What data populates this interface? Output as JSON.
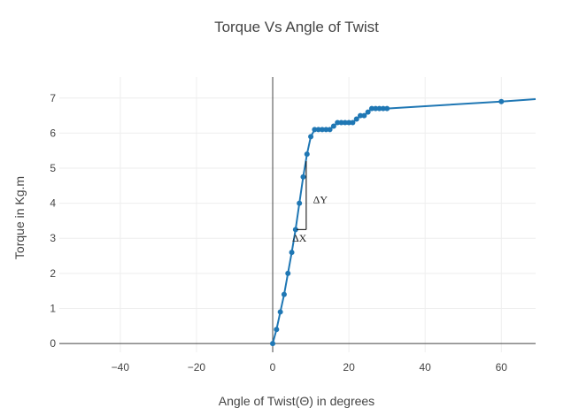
{
  "chart_data": {
    "type": "line",
    "title": "Torque Vs Angle of Twist",
    "xlabel": "Angle of Twist(Θ) in degrees",
    "ylabel": "Torque in Kg.m",
    "xlim": [
      -56,
      69
    ],
    "ylim": [
      -0.25,
      7.6
    ],
    "xticks": [
      -40,
      -20,
      0,
      20,
      40,
      60
    ],
    "yticks": [
      0,
      1,
      2,
      3,
      4,
      5,
      6,
      7
    ],
    "xtick_labels": [
      "−40",
      "−20",
      "0",
      "20",
      "40",
      "60"
    ],
    "ytick_labels": [
      "0",
      "1",
      "2",
      "3",
      "4",
      "5",
      "6",
      "7"
    ],
    "grid": true,
    "legend": "none",
    "colors": {
      "series": "#1f77b4",
      "grid": "#eeeeee",
      "axis": "#444444",
      "annotation": "#000000"
    },
    "series": [
      {
        "x": [
          0,
          1,
          2,
          3,
          4,
          5,
          6,
          7,
          8,
          9,
          10,
          11,
          12,
          13,
          14,
          15,
          16,
          17,
          18,
          19,
          20,
          21,
          22,
          23,
          24,
          25,
          26,
          27,
          28,
          29,
          30,
          60,
          69
        ],
        "y": [
          0,
          0.4,
          0.9,
          1.4,
          2.0,
          2.6,
          3.25,
          4.0,
          4.75,
          5.4,
          5.9,
          6.1,
          6.1,
          6.1,
          6.1,
          6.1,
          6.2,
          6.3,
          6.3,
          6.3,
          6.3,
          6.3,
          6.4,
          6.5,
          6.5,
          6.6,
          6.7,
          6.7,
          6.7,
          6.7,
          6.7,
          6.9,
          6.97
        ],
        "markers": [
          true,
          true,
          true,
          true,
          true,
          true,
          true,
          true,
          true,
          true,
          true,
          true,
          true,
          true,
          true,
          true,
          true,
          true,
          true,
          true,
          true,
          true,
          true,
          true,
          true,
          true,
          true,
          true,
          true,
          true,
          true,
          true,
          false
        ]
      }
    ],
    "annotations": {
      "dy_label": "ΔY",
      "dx_label": "ΔX",
      "triangle": {
        "x_start": 6.3,
        "x_end": 8.8,
        "y_bottom": 3.25,
        "y_top": 5.2
      },
      "dy_label_pos": {
        "x": 12.5,
        "y": 4.1
      },
      "dx_label_pos": {
        "x": 7,
        "y": 3.0
      }
    }
  }
}
